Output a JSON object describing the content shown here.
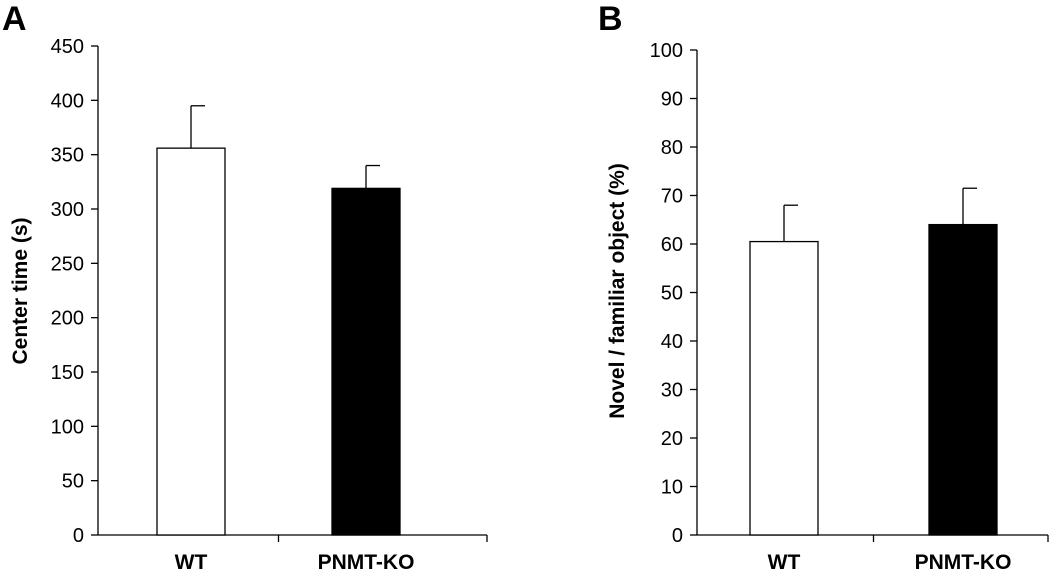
{
  "chart_data": [
    {
      "type": "bar",
      "panel_label": "A",
      "categories": [
        "WT",
        "PNMT-KO"
      ],
      "values": [
        356,
        319
      ],
      "error": [
        39,
        21
      ],
      "bar_colors": [
        "#ffffff",
        "#000000"
      ],
      "ylabel": "Center time (s)",
      "xlabel": "",
      "ylim": [
        0,
        450
      ],
      "yticks": [
        "0",
        "50",
        "100",
        "150",
        "200",
        "250",
        "300",
        "350",
        "400",
        "450"
      ],
      "grid": false
    },
    {
      "type": "bar",
      "panel_label": "B",
      "categories": [
        "WT",
        "PNMT-KO"
      ],
      "values": [
        60.5,
        64
      ],
      "error": [
        7.5,
        7.5
      ],
      "bar_colors": [
        "#ffffff",
        "#000000"
      ],
      "ylabel": "Novel / familiar object (%)",
      "xlabel": "",
      "ylim": [
        0,
        100
      ],
      "yticks": [
        "0",
        "10",
        "20",
        "30",
        "40",
        "50",
        "60",
        "70",
        "80",
        "90",
        "100"
      ],
      "grid": false
    }
  ]
}
